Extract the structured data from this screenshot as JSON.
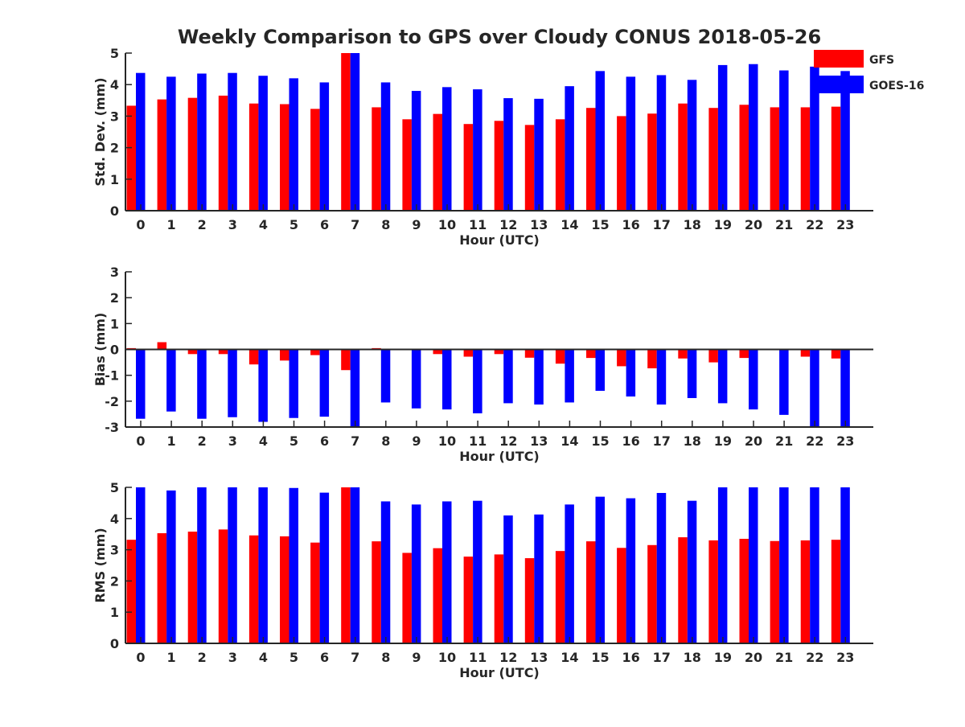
{
  "title": "Weekly Comparison to GPS over Cloudy CONUS 2018-05-26",
  "legend": {
    "placement": "top-right",
    "items": [
      {
        "label": "GFS",
        "color": "#ff0000"
      },
      {
        "label": "GOES-16",
        "color": "#0000ff"
      }
    ]
  },
  "chart_data": [
    {
      "type": "bar",
      "title": "",
      "xlabel": "Hour (UTC)",
      "ylabel": "Std. Dev. (mm)",
      "ylim": [
        0,
        5
      ],
      "yticks": [
        0,
        1,
        2,
        3,
        4,
        5
      ],
      "categories": [
        "0",
        "1",
        "2",
        "3",
        "4",
        "5",
        "6",
        "7",
        "8",
        "9",
        "10",
        "11",
        "12",
        "13",
        "14",
        "15",
        "16",
        "17",
        "18",
        "19",
        "20",
        "21",
        "22",
        "23"
      ],
      "series": [
        {
          "name": "GFS",
          "color": "#ff0000",
          "values": [
            3.33,
            3.53,
            3.58,
            3.65,
            3.4,
            3.38,
            3.23,
            5.0,
            3.28,
            2.9,
            3.07,
            2.75,
            2.85,
            2.72,
            2.9,
            3.26,
            3.0,
            3.08,
            3.4,
            3.26,
            3.36,
            3.28,
            3.28,
            3.3
          ]
        },
        {
          "name": "GOES-16",
          "color": "#0000ff",
          "values": [
            4.37,
            4.25,
            4.35,
            4.37,
            4.28,
            4.2,
            4.07,
            5.0,
            4.07,
            3.8,
            3.92,
            3.85,
            3.57,
            3.55,
            3.95,
            4.43,
            4.25,
            4.3,
            4.15,
            4.62,
            4.65,
            4.45,
            4.57,
            4.43
          ]
        }
      ]
    },
    {
      "type": "bar",
      "title": "",
      "xlabel": "Hour (UTC)",
      "ylabel": "Bias (mm)",
      "ylim": [
        -3,
        3
      ],
      "yticks": [
        -3,
        -2,
        -1,
        0,
        1,
        2,
        3
      ],
      "zero_line": true,
      "categories": [
        "0",
        "1",
        "2",
        "3",
        "4",
        "5",
        "6",
        "7",
        "8",
        "9",
        "10",
        "11",
        "12",
        "13",
        "14",
        "15",
        "16",
        "17",
        "18",
        "19",
        "20",
        "21",
        "22",
        "23"
      ],
      "series": [
        {
          "name": "GFS",
          "color": "#ff0000",
          "values": [
            0.05,
            0.28,
            -0.18,
            -0.18,
            -0.58,
            -0.43,
            -0.22,
            -0.8,
            0.05,
            0.02,
            -0.18,
            -0.28,
            -0.18,
            -0.32,
            -0.55,
            -0.33,
            -0.65,
            -0.73,
            -0.35,
            -0.5,
            -0.33,
            0,
            -0.28,
            -0.35
          ]
        },
        {
          "name": "GOES-16",
          "color": "#0000ff",
          "values": [
            -2.68,
            -2.4,
            -2.68,
            -2.62,
            -2.8,
            -2.65,
            -2.6,
            -3.0,
            -2.05,
            -2.28,
            -2.32,
            -2.47,
            -2.08,
            -2.13,
            -2.05,
            -1.6,
            -1.82,
            -2.13,
            -1.88,
            -2.08,
            -2.32,
            -2.53,
            -3.0,
            -3.0
          ]
        }
      ]
    },
    {
      "type": "bar",
      "title": "",
      "xlabel": "Hour (UTC)",
      "ylabel": "RMS (mm)",
      "ylim": [
        0,
        5
      ],
      "yticks": [
        0,
        1,
        2,
        3,
        4,
        5
      ],
      "categories": [
        "0",
        "1",
        "2",
        "3",
        "4",
        "5",
        "6",
        "7",
        "8",
        "9",
        "10",
        "11",
        "12",
        "13",
        "14",
        "15",
        "16",
        "17",
        "18",
        "19",
        "20",
        "21",
        "22",
        "23"
      ],
      "series": [
        {
          "name": "GFS",
          "color": "#ff0000",
          "values": [
            3.32,
            3.53,
            3.58,
            3.65,
            3.46,
            3.43,
            3.23,
            5.0,
            3.27,
            2.9,
            3.05,
            2.78,
            2.85,
            2.73,
            2.96,
            3.27,
            3.06,
            3.15,
            3.4,
            3.3,
            3.35,
            3.28,
            3.3,
            3.32
          ]
        },
        {
          "name": "GOES-16",
          "color": "#0000ff",
          "values": [
            5.0,
            4.9,
            5.0,
            5.0,
            5.0,
            4.98,
            4.83,
            5.0,
            4.55,
            4.45,
            4.55,
            4.57,
            4.1,
            4.13,
            4.45,
            4.7,
            4.65,
            4.82,
            4.57,
            5.0,
            5.0,
            5.0,
            5.0,
            5.0
          ]
        }
      ]
    }
  ]
}
